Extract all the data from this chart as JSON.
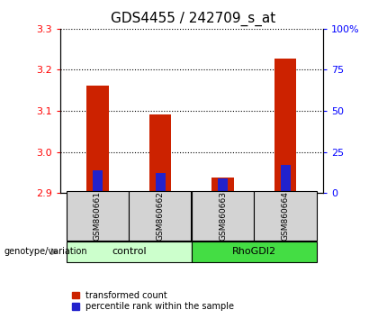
{
  "title": "GDS4455 / 242709_s_at",
  "samples": [
    "GSM860661",
    "GSM860662",
    "GSM860663",
    "GSM860664"
  ],
  "groups": [
    "control",
    "control",
    "RhoGDI2",
    "RhoGDI2"
  ],
  "transformed_count": [
    3.162,
    3.092,
    2.937,
    3.228
  ],
  "percentile_rank": [
    14,
    12,
    9,
    17
  ],
  "ylim_left": [
    2.9,
    3.3
  ],
  "ylim_right": [
    0,
    100
  ],
  "yticks_left": [
    2.9,
    3.0,
    3.1,
    3.2,
    3.3
  ],
  "yticks_right": [
    0,
    25,
    50,
    75,
    100
  ],
  "ytick_labels_right": [
    "0",
    "25",
    "50",
    "75",
    "100%"
  ],
  "bar_color_red": "#cc2200",
  "bar_color_blue": "#2222cc",
  "bar_bottom": 2.9,
  "control_color": "#ccffcc",
  "rhodgi2_color": "#44dd44",
  "group_label": "genotype/variation",
  "legend_red": "transformed count",
  "legend_blue": "percentile rank within the sample",
  "title_fontsize": 11,
  "tick_fontsize": 8,
  "background_color": "#ffffff",
  "bar_width": 0.35,
  "sample_box_color": "#d3d3d3"
}
